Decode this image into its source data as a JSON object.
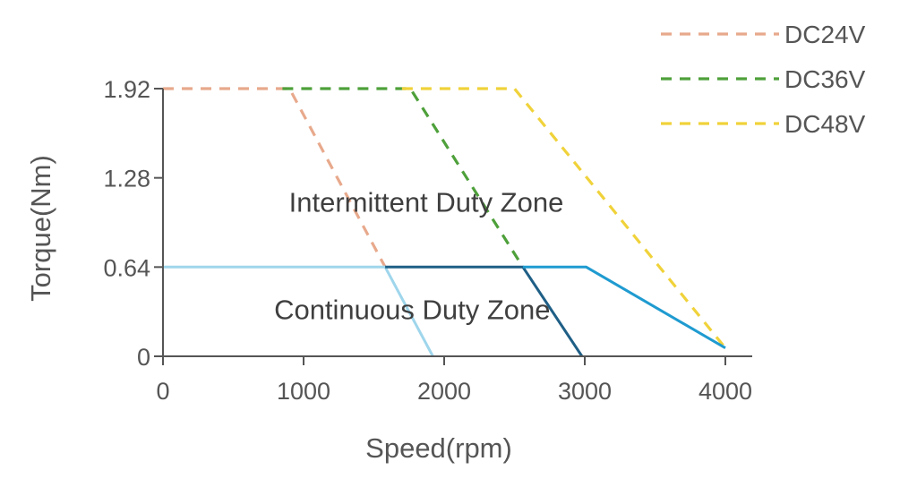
{
  "chart_data": {
    "type": "line",
    "xlabel": "Speed(rpm)",
    "ylabel": "Torque(Nm)",
    "xlim": [
      0,
      4000
    ],
    "ylim": [
      0,
      1.92
    ],
    "x_ticks": [
      0,
      1000,
      2000,
      3000,
      4000
    ],
    "x_tick_labels": [
      "0",
      "1000",
      "2000",
      "3000",
      "4000"
    ],
    "y_ticks": [
      0,
      0.64,
      1.28,
      1.92
    ],
    "y_tick_labels": [
      "0",
      "0.64",
      "1.28",
      "1.92"
    ],
    "grid": false,
    "legend_position": "top-right",
    "annotations": [
      {
        "text": "Intermittent Duty Zone",
        "x": 2000,
        "y": 1.1
      },
      {
        "text": "Continuous Duty Zone",
        "x": 1900,
        "y": 0.33
      }
    ],
    "series": [
      {
        "name": "DC24V",
        "style": "dashed",
        "color": "#e8a98c",
        "points": [
          [
            0,
            1.92
          ],
          [
            900,
            1.92
          ],
          [
            1580,
            0.64
          ]
        ]
      },
      {
        "name": "DC36V",
        "style": "dashed",
        "color": "#4ea03a",
        "points": [
          [
            850,
            1.92
          ],
          [
            1760,
            1.92
          ],
          [
            2560,
            0.64
          ]
        ]
      },
      {
        "name": "DC48V",
        "style": "dashed",
        "color": "#f0d23a",
        "points": [
          [
            1700,
            1.92
          ],
          [
            2500,
            1.92
          ],
          [
            4000,
            0.06
          ]
        ]
      },
      {
        "style": "solid",
        "color": "#9fd6ec",
        "points": [
          [
            0,
            0.64
          ],
          [
            1580,
            0.64
          ],
          [
            1920,
            0
          ]
        ]
      },
      {
        "style": "solid",
        "color": "#1f5f86",
        "points": [
          [
            1580,
            0.64
          ],
          [
            2560,
            0.64
          ],
          [
            2980,
            0
          ]
        ]
      },
      {
        "style": "solid",
        "color": "#1f9bd0",
        "points": [
          [
            2560,
            0.64
          ],
          [
            3010,
            0.64
          ],
          [
            4000,
            0.06
          ]
        ]
      }
    ]
  }
}
